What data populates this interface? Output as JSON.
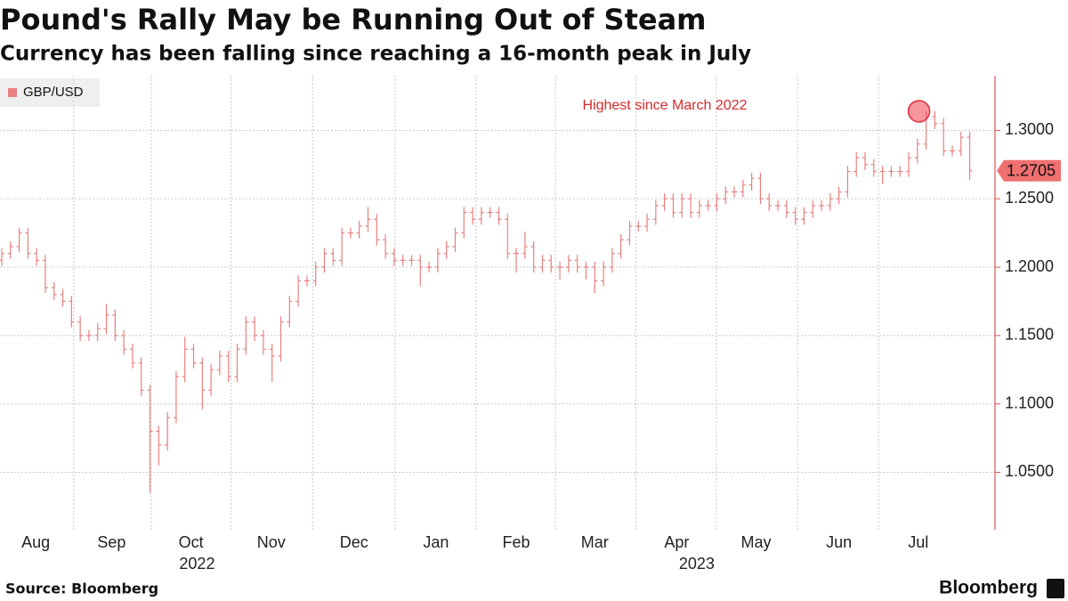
{
  "chart_data": {
    "type": "ohlc",
    "title": "Pound's Rally May be Running Out of Steam",
    "subtitle": "Currency has been falling since reaching a 16-month peak in July",
    "source": "Source: Bloomberg",
    "brand": "Bloomberg",
    "annotation": "Highest since March 2022",
    "annotation_index": 106,
    "grid": true,
    "xlim": [
      -0.2,
      113.9
    ],
    "xticks": [
      {
        "value": 3.9,
        "label": "Aug"
      },
      {
        "value": 12.6,
        "label": "Sep"
      },
      {
        "value": 21.7,
        "label": "Oct"
      },
      {
        "value": 30.9,
        "label": "Nov"
      },
      {
        "value": 40.4,
        "label": "Dec"
      },
      {
        "value": 49.8,
        "label": "Jan"
      },
      {
        "value": 59,
        "label": "Feb"
      },
      {
        "value": 68,
        "label": "Mar"
      },
      {
        "value": 77.4,
        "label": "Apr"
      },
      {
        "value": 86.5,
        "label": "May"
      },
      {
        "value": 96,
        "label": "Jun"
      },
      {
        "value": 105.1,
        "label": "Jul"
      }
    ],
    "year_labels": [
      {
        "value": 22.4,
        "label": "2022"
      },
      {
        "value": 79.7,
        "label": "2023"
      }
    ],
    "ylim": [
      1.008,
      1.34
    ],
    "yticks": [
      {
        "value": 1.05,
        "label": "1.0500"
      },
      {
        "value": 1.1,
        "label": "1.1000"
      },
      {
        "value": 1.15,
        "label": "1.1500"
      },
      {
        "value": 1.2,
        "label": "1.2000"
      },
      {
        "value": 1.25,
        "label": "1.2500"
      },
      {
        "value": 1.3,
        "label": "1.3000"
      }
    ],
    "series": [
      {
        "name": "GBP/USD",
        "color": "#e88080",
        "open": [
          1.205,
          1.21,
          1.215,
          1.225,
          1.21,
          1.205,
          1.185,
          1.18,
          1.175,
          1.16,
          1.15,
          1.15,
          1.155,
          1.165,
          1.15,
          1.14,
          1.13,
          1.11,
          1.08,
          1.07,
          1.09,
          1.12,
          1.14,
          1.13,
          1.11,
          1.125,
          1.135,
          1.12,
          1.14,
          1.16,
          1.15,
          1.14,
          1.135,
          1.16,
          1.175,
          1.19,
          1.19,
          1.2,
          1.21,
          1.205,
          1.225,
          1.225,
          1.23,
          1.235,
          1.22,
          1.21,
          1.205,
          1.205,
          1.205,
          1.2,
          1.2,
          1.21,
          1.215,
          1.225,
          1.24,
          1.235,
          1.24,
          1.24,
          1.235,
          1.21,
          1.21,
          1.215,
          1.2,
          1.205,
          1.2,
          1.2,
          1.205,
          1.2,
          1.2,
          1.19,
          1.2,
          1.21,
          1.22,
          1.23,
          1.23,
          1.235,
          1.245,
          1.25,
          1.24,
          1.25,
          1.24,
          1.245,
          1.245,
          1.25,
          1.255,
          1.255,
          1.26,
          1.265,
          1.25,
          1.245,
          1.245,
          1.24,
          1.235,
          1.24,
          1.245,
          1.245,
          1.25,
          1.255,
          1.27,
          1.28,
          1.275,
          1.27,
          1.27,
          1.27,
          1.27,
          1.28,
          1.29,
          1.31,
          1.305,
          1.285,
          1.285,
          1.295
        ],
        "high": [
          1.214,
          1.219,
          1.229,
          1.229,
          1.214,
          1.209,
          1.189,
          1.184,
          1.179,
          1.164,
          1.154,
          1.159,
          1.173,
          1.169,
          1.154,
          1.144,
          1.134,
          1.114,
          1.084,
          1.094,
          1.124,
          1.149,
          1.144,
          1.134,
          1.129,
          1.139,
          1.139,
          1.144,
          1.164,
          1.164,
          1.154,
          1.144,
          1.164,
          1.179,
          1.194,
          1.194,
          1.204,
          1.214,
          1.214,
          1.229,
          1.229,
          1.234,
          1.244,
          1.239,
          1.224,
          1.214,
          1.209,
          1.209,
          1.209,
          1.204,
          1.214,
          1.219,
          1.229,
          1.244,
          1.244,
          1.244,
          1.244,
          1.244,
          1.239,
          1.214,
          1.226,
          1.219,
          1.209,
          1.209,
          1.204,
          1.209,
          1.209,
          1.204,
          1.204,
          1.204,
          1.214,
          1.224,
          1.234,
          1.234,
          1.239,
          1.249,
          1.254,
          1.254,
          1.254,
          1.254,
          1.249,
          1.249,
          1.254,
          1.259,
          1.259,
          1.264,
          1.269,
          1.269,
          1.254,
          1.249,
          1.249,
          1.244,
          1.244,
          1.249,
          1.249,
          1.254,
          1.259,
          1.274,
          1.284,
          1.284,
          1.279,
          1.274,
          1.274,
          1.274,
          1.284,
          1.294,
          1.314,
          1.314,
          1.309,
          1.289,
          1.299,
          1.299
        ],
        "low": [
          1.201,
          1.206,
          1.211,
          1.206,
          1.201,
          1.181,
          1.176,
          1.171,
          1.156,
          1.146,
          1.146,
          1.146,
          1.151,
          1.146,
          1.136,
          1.126,
          1.106,
          1.035,
          1.055,
          1.066,
          1.086,
          1.116,
          1.126,
          1.096,
          1.106,
          1.121,
          1.116,
          1.116,
          1.136,
          1.146,
          1.136,
          1.116,
          1.131,
          1.156,
          1.171,
          1.186,
          1.186,
          1.196,
          1.201,
          1.201,
          1.221,
          1.221,
          1.226,
          1.216,
          1.206,
          1.201,
          1.201,
          1.201,
          1.186,
          1.196,
          1.196,
          1.206,
          1.211,
          1.221,
          1.231,
          1.231,
          1.236,
          1.231,
          1.206,
          1.196,
          1.206,
          1.196,
          1.196,
          1.196,
          1.191,
          1.196,
          1.196,
          1.191,
          1.181,
          1.186,
          1.196,
          1.206,
          1.216,
          1.226,
          1.226,
          1.231,
          1.241,
          1.236,
          1.236,
          1.236,
          1.236,
          1.241,
          1.241,
          1.246,
          1.251,
          1.251,
          1.256,
          1.246,
          1.241,
          1.241,
          1.236,
          1.231,
          1.231,
          1.236,
          1.241,
          1.241,
          1.246,
          1.251,
          1.266,
          1.271,
          1.266,
          1.261,
          1.266,
          1.266,
          1.266,
          1.276,
          1.286,
          1.301,
          1.281,
          1.281,
          1.281,
          1.264
        ],
        "close": [
          1.21,
          1.215,
          1.225,
          1.21,
          1.205,
          1.185,
          1.18,
          1.175,
          1.16,
          1.15,
          1.15,
          1.155,
          1.165,
          1.15,
          1.14,
          1.13,
          1.11,
          1.08,
          1.07,
          1.09,
          1.12,
          1.14,
          1.13,
          1.11,
          1.125,
          1.135,
          1.12,
          1.14,
          1.16,
          1.15,
          1.14,
          1.135,
          1.16,
          1.175,
          1.19,
          1.19,
          1.2,
          1.21,
          1.205,
          1.225,
          1.225,
          1.23,
          1.235,
          1.22,
          1.21,
          1.205,
          1.205,
          1.205,
          1.2,
          1.2,
          1.21,
          1.215,
          1.225,
          1.24,
          1.235,
          1.24,
          1.24,
          1.235,
          1.21,
          1.21,
          1.215,
          1.2,
          1.205,
          1.2,
          1.2,
          1.205,
          1.2,
          1.2,
          1.19,
          1.2,
          1.21,
          1.22,
          1.23,
          1.23,
          1.235,
          1.245,
          1.25,
          1.24,
          1.25,
          1.24,
          1.245,
          1.245,
          1.25,
          1.255,
          1.255,
          1.26,
          1.265,
          1.25,
          1.245,
          1.245,
          1.24,
          1.235,
          1.24,
          1.245,
          1.245,
          1.25,
          1.255,
          1.27,
          1.28,
          1.275,
          1.27,
          1.27,
          1.27,
          1.27,
          1.28,
          1.29,
          1.31,
          1.305,
          1.285,
          1.285,
          1.295,
          1.2705
        ]
      }
    ]
  }
}
